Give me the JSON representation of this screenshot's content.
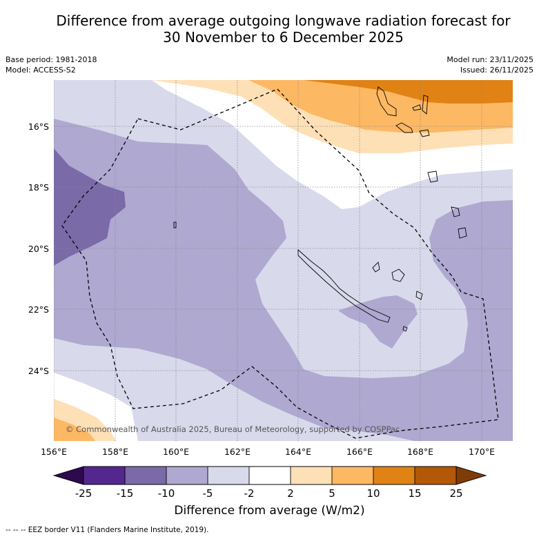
{
  "title_line1": "Difference from average outgoing longwave radiation forecast for",
  "title_line2": "30 November to 6 December 2025",
  "base_period": "Base period: 1981-2018",
  "model": "Model: ACCESS-S2",
  "model_run": "Model run: 23/11/2025",
  "issued": "Issued: 26/11/2025",
  "copyright": "© Commonwealth of Australia 2025, Bureau of Meteorology, supported by COSPPac",
  "lon_labels": [
    "156°E",
    "158°E",
    "160°E",
    "162°E",
    "164°E",
    "166°E",
    "168°E",
    "170°E"
  ],
  "lat_labels": [
    "16°S",
    "18°S",
    "20°S",
    "22°S",
    "24°S"
  ],
  "colorbar": {
    "title": "Difference from average (W/m2)",
    "ticks": [
      "-25",
      "-15",
      "-10",
      "-5",
      "-2",
      "2",
      "5",
      "10",
      "15",
      "25"
    ],
    "colors": {
      "below_-25": "#2d0a4e",
      "-25_-15": "#54278f",
      "-15_-10": "#7a6aa8",
      "-10_-5": "#afa8d0",
      "-5_-2": "#d9d9ec",
      "-2_2": "#ffffff",
      "2_5": "#fee0b6",
      "5_10": "#fdb863",
      "10_15": "#e08214",
      "15_25": "#b35806",
      "above_25": "#7f3b08"
    }
  },
  "legend_note": "--  --  -- EEZ border V11 (Flanders Marine Institute, 2019)."
}
